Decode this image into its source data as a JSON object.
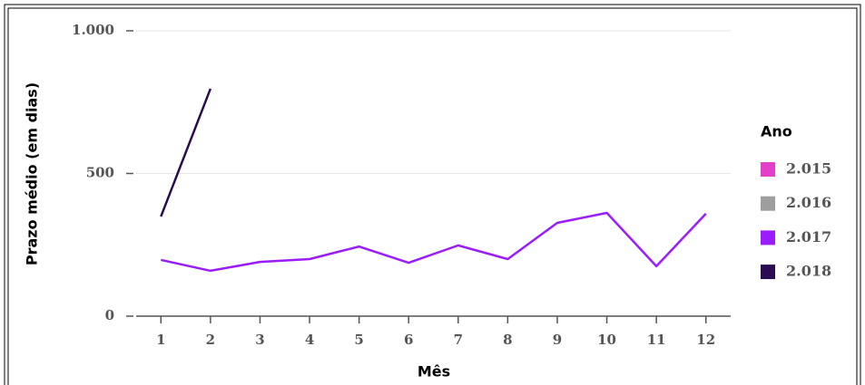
{
  "chart_data": {
    "type": "line",
    "y_label": "Prazo médio (em dias)",
    "x_label": "Mês",
    "legend_title": "Ano",
    "x": [
      1,
      2,
      3,
      4,
      5,
      6,
      7,
      8,
      9,
      10,
      11,
      12
    ],
    "xlim": [
      0.5,
      12.5
    ],
    "xticks": [
      1,
      2,
      3,
      4,
      5,
      6,
      7,
      8,
      9,
      10,
      11,
      12
    ],
    "ylim": [
      0,
      1000
    ],
    "yticks": [
      0,
      500,
      {
        "value": 1000,
        "label": "1.000"
      }
    ],
    "grid": true,
    "legend_position": "right",
    "series": [
      {
        "name": "2.015",
        "color": "#e23fcb",
        "values": [
          null,
          null,
          null,
          null,
          null,
          null,
          null,
          null,
          null,
          null,
          null,
          null
        ]
      },
      {
        "name": "2.016",
        "color": "#9e9e9e",
        "values": [
          null,
          null,
          null,
          null,
          null,
          null,
          null,
          null,
          null,
          null,
          null,
          null
        ]
      },
      {
        "name": "2.017",
        "color": "#9a1cff",
        "values": [
          197,
          159,
          190,
          200,
          244,
          187,
          248,
          200,
          327,
          362,
          175,
          359
        ]
      },
      {
        "name": "2.018",
        "color": "#2b0b52",
        "values": [
          349,
          797,
          null,
          null,
          null,
          null,
          null,
          null,
          null,
          null,
          null,
          null
        ]
      }
    ]
  }
}
